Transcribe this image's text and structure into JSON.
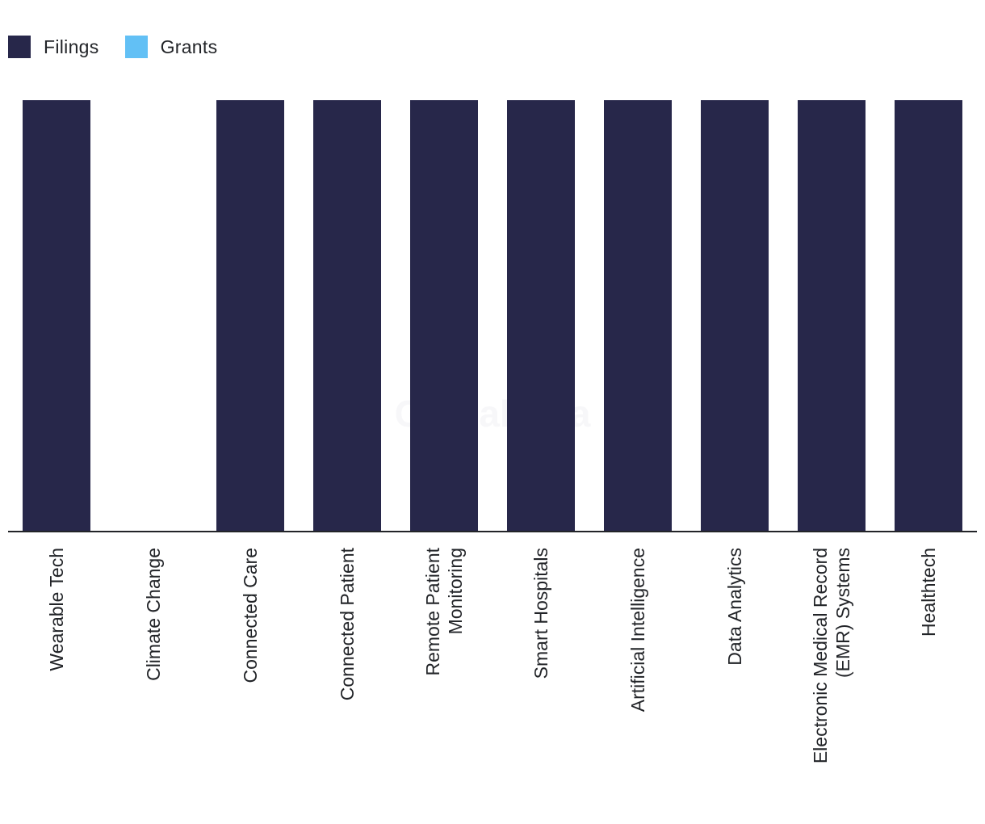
{
  "chart_data": {
    "type": "bar",
    "categories": [
      "Wearable Tech",
      "Climate Change",
      "Connected Care",
      "Connected Patient",
      "Remote Patient Monitoring",
      "Smart Hospitals",
      "Artificial Intelligence",
      "Data Analytics",
      "Electronic Medical Record (EMR) Systems",
      "Healthtech"
    ],
    "category_label_lines": [
      [
        "Wearable Tech"
      ],
      [
        "Climate Change"
      ],
      [
        "Connected Care"
      ],
      [
        "Connected Patient"
      ],
      [
        "Remote Patient",
        "Monitoring"
      ],
      [
        "Smart Hospitals"
      ],
      [
        "Artificial Intelligence"
      ],
      [
        "Data Analytics"
      ],
      [
        "Electronic Medical Record",
        "(EMR) Systems"
      ],
      [
        "Healthtech"
      ]
    ],
    "series": [
      {
        "name": "Filings",
        "color": "#27274a",
        "values": [
          1,
          0,
          1,
          1,
          1,
          1,
          1,
          1,
          1,
          1
        ]
      },
      {
        "name": "Grants",
        "color": "#62c0f5",
        "values": [
          0,
          0,
          0,
          0,
          0,
          0,
          0,
          0,
          0,
          0
        ]
      }
    ],
    "ylim": [
      0,
      1
    ],
    "title": "",
    "xlabel": "",
    "ylabel": "",
    "grid": false,
    "legend_position": "top-left"
  },
  "legend": {
    "items": [
      {
        "label": "Filings",
        "color": "#27274a"
      },
      {
        "label": "Grants",
        "color": "#62c0f5"
      }
    ]
  },
  "watermark": "GlobalData"
}
